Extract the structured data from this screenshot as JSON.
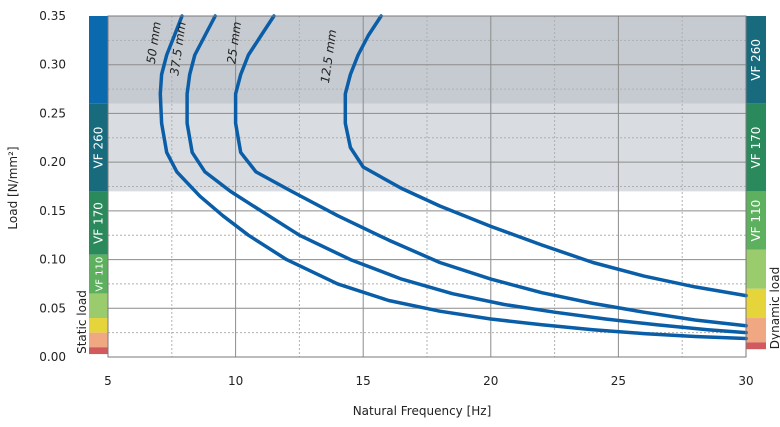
{
  "chart_data": {
    "type": "line",
    "title": "",
    "xlabel": "Natural Frequency  [Hz]",
    "ylabel": "Load  [N/mm²]",
    "xlim": [
      5,
      30
    ],
    "ylim": [
      0,
      0.35
    ],
    "x_ticks": [
      "5",
      "10",
      "15",
      "20",
      "25",
      "30"
    ],
    "y_ticks": [
      "0.00",
      "0.05",
      "0.10",
      "0.15",
      "0.20",
      "0.25",
      "0.30",
      "0.35"
    ],
    "grid": true,
    "line_color": "#0a5ea8",
    "shaded_bands": [
      {
        "from": 0.17,
        "to": 0.26,
        "color": "#d9dde2"
      },
      {
        "from": 0.26,
        "to": 0.35,
        "color": "#c5cbd1"
      }
    ],
    "series": [
      {
        "name": "50 mm",
        "points": [
          [
            7.9,
            0.35
          ],
          [
            7.6,
            0.33
          ],
          [
            7.3,
            0.31
          ],
          [
            7.1,
            0.29
          ],
          [
            7.05,
            0.27
          ],
          [
            7.1,
            0.24
          ],
          [
            7.3,
            0.21
          ],
          [
            7.7,
            0.19
          ],
          [
            8.6,
            0.165
          ],
          [
            9.5,
            0.145
          ],
          [
            10.5,
            0.125
          ],
          [
            12,
            0.1
          ],
          [
            14,
            0.075
          ],
          [
            16,
            0.058
          ],
          [
            18,
            0.047
          ],
          [
            20,
            0.039
          ],
          [
            22,
            0.033
          ],
          [
            24,
            0.028
          ],
          [
            26,
            0.024
          ],
          [
            28,
            0.021
          ],
          [
            30,
            0.019
          ]
        ]
      },
      {
        "name": "37.5 mm",
        "points": [
          [
            9.2,
            0.35
          ],
          [
            8.8,
            0.33
          ],
          [
            8.4,
            0.31
          ],
          [
            8.2,
            0.29
          ],
          [
            8.1,
            0.27
          ],
          [
            8.1,
            0.24
          ],
          [
            8.3,
            0.21
          ],
          [
            8.8,
            0.19
          ],
          [
            9.8,
            0.17
          ],
          [
            11,
            0.15
          ],
          [
            12.5,
            0.125
          ],
          [
            14.5,
            0.1
          ],
          [
            16.5,
            0.08
          ],
          [
            18.5,
            0.065
          ],
          [
            20.5,
            0.054
          ],
          [
            22.5,
            0.046
          ],
          [
            24.5,
            0.039
          ],
          [
            26.5,
            0.033
          ],
          [
            28.5,
            0.028
          ],
          [
            30,
            0.025
          ]
        ]
      },
      {
        "name": "25 mm",
        "points": [
          [
            11.5,
            0.35
          ],
          [
            11,
            0.33
          ],
          [
            10.5,
            0.31
          ],
          [
            10.2,
            0.29
          ],
          [
            10.0,
            0.27
          ],
          [
            10.0,
            0.24
          ],
          [
            10.2,
            0.21
          ],
          [
            10.8,
            0.19
          ],
          [
            12.2,
            0.17
          ],
          [
            14,
            0.145
          ],
          [
            16,
            0.12
          ],
          [
            18,
            0.097
          ],
          [
            20,
            0.08
          ],
          [
            22,
            0.066
          ],
          [
            24,
            0.055
          ],
          [
            26,
            0.046
          ],
          [
            28,
            0.038
          ],
          [
            30,
            0.032
          ]
        ]
      },
      {
        "name": "12.5 mm",
        "points": [
          [
            15.7,
            0.35
          ],
          [
            15.2,
            0.33
          ],
          [
            14.8,
            0.31
          ],
          [
            14.5,
            0.29
          ],
          [
            14.3,
            0.27
          ],
          [
            14.3,
            0.24
          ],
          [
            14.5,
            0.215
          ],
          [
            15,
            0.195
          ],
          [
            16.5,
            0.173
          ],
          [
            18,
            0.155
          ],
          [
            20,
            0.134
          ],
          [
            22,
            0.115
          ],
          [
            24,
            0.097
          ],
          [
            26,
            0.083
          ],
          [
            28,
            0.072
          ],
          [
            30,
            0.063
          ]
        ]
      }
    ],
    "left_scale": {
      "title": "Static load",
      "segments": [
        {
          "from": 0.26,
          "to": 0.35,
          "color": "#0b6aad",
          "label": ""
        },
        {
          "from": 0.17,
          "to": 0.26,
          "color": "#186b7d",
          "label": "VF 260"
        },
        {
          "from": 0.105,
          "to": 0.17,
          "color": "#2a8a5c",
          "label": "VF 170"
        },
        {
          "from": 0.065,
          "to": 0.105,
          "color": "#5db05e",
          "label": "VF 110"
        },
        {
          "from": 0.04,
          "to": 0.065,
          "color": "#9acb6c",
          "label": ""
        },
        {
          "from": 0.025,
          "to": 0.04,
          "color": "#e6d43b",
          "label": ""
        },
        {
          "from": 0.01,
          "to": 0.025,
          "color": "#f0a882",
          "label": ""
        },
        {
          "from": 0.003,
          "to": 0.01,
          "color": "#d05a5e",
          "label": ""
        }
      ]
    },
    "right_scale": {
      "title": "Dynamic load",
      "segments": [
        {
          "from": 0.26,
          "to": 0.35,
          "color": "#186b7d",
          "label": "VF 260"
        },
        {
          "from": 0.17,
          "to": 0.26,
          "color": "#2a8a5c",
          "label": "VF 170"
        },
        {
          "from": 0.11,
          "to": 0.17,
          "color": "#5db05e",
          "label": "VF 110"
        },
        {
          "from": 0.07,
          "to": 0.11,
          "color": "#9acb6c",
          "label": ""
        },
        {
          "from": 0.04,
          "to": 0.07,
          "color": "#e6d43b",
          "label": ""
        },
        {
          "from": 0.015,
          "to": 0.04,
          "color": "#f0a882",
          "label": ""
        },
        {
          "from": 0.008,
          "to": 0.015,
          "color": "#d05a5e",
          "label": ""
        }
      ]
    }
  }
}
